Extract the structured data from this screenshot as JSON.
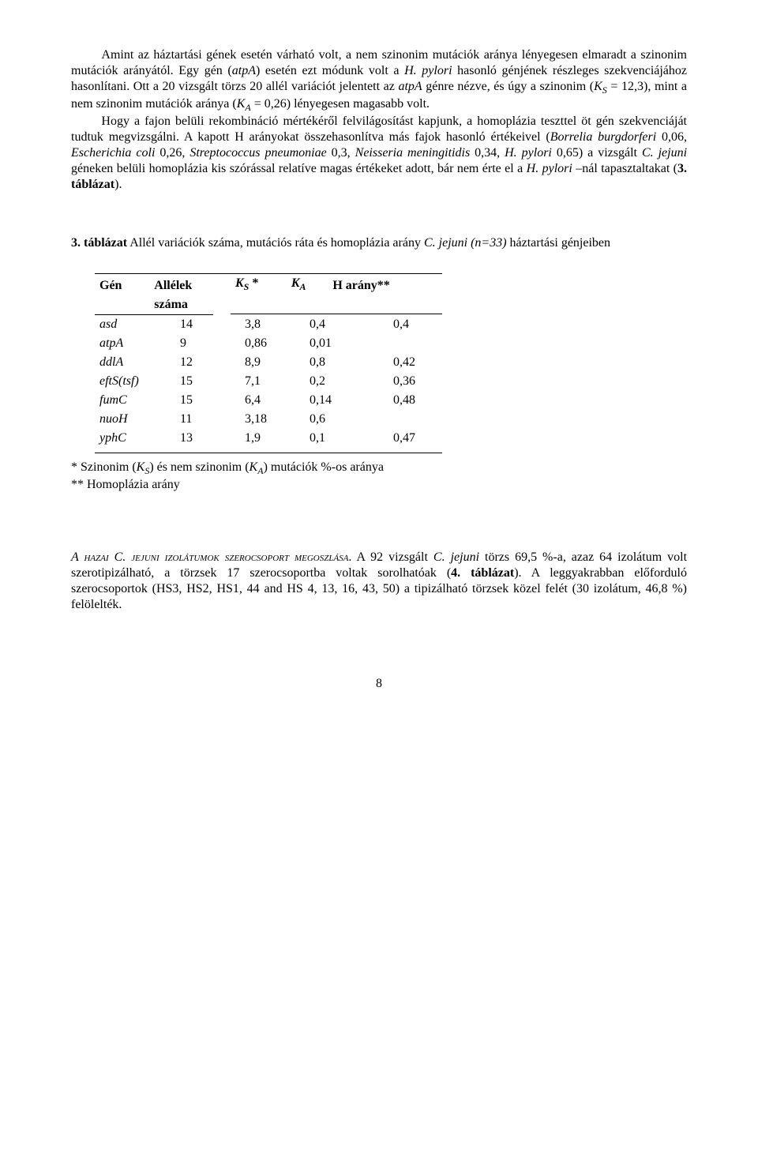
{
  "paragraphs": {
    "p1a": "Amint az háztartási gének esetén várható volt, a nem szinonim mutációk aránya lényegesen elmaradt a szinonim mutációk arányától. Egy gén (",
    "p1b_it": "atpA",
    "p1c": ") esetén ezt módunk volt a ",
    "p1d_it": "H. pylori",
    "p1e": " hasonló génjének részleges szekvenciájához hasonlítani. Ott a 20 vizsgált törzs 20 allél variációt jelentett az ",
    "p1f_it": "atpA",
    "p1g": " génre nézve, és úgy a szinonim (",
    "p1h_it": "K",
    "p1h_sub": "S",
    "p1i": " = 12,3), mint a nem szinonim mutációk aránya (",
    "p1j_it": "K",
    "p1j_sub": "A",
    "p1k": " = 0,26) lényegesen magasabb volt.",
    "p2a": "Hogy a fajon belüli rekombináció mértékéről felvilágosítást kapjunk, a homoplázia teszttel öt gén szekvenciáját tudtuk megvizsgálni. A kapott H arányokat összehasonlítva más fajok hasonló értékeivel (",
    "p2b_it": "Borrelia burgdorferi",
    "p2c": " 0,06, ",
    "p2d_it": "Escherichia coli",
    "p2e": " 0,26, ",
    "p2f_it": "Streptococcus pneumoniae",
    "p2g": " 0,3, ",
    "p2h_it": "Neisseria meningitidis",
    "p2i": " 0,34, ",
    "p2j_it": "H. pylori",
    "p2k": " 0,65) a vizsgált ",
    "p2l_it": "C. jejuni",
    "p2m": " géneken belüli homoplázia kis szórással relatíve magas értékeket adott, bár nem érte el a ",
    "p2n_it": "H. pylori",
    "p2o": " –nál tapasztaltakat (",
    "p2p_b": "3. táblázat",
    "p2q": ")."
  },
  "caption": {
    "lead_b": "3. táblázat",
    "rest1": " Allél variációk száma, mutációs ráta és homoplázia arány   ",
    "it": "C. jejuni (n=33)",
    "rest2": " háztartási génjeiben"
  },
  "table": {
    "columns": {
      "c1": "Gén",
      "c2a": "Allélek",
      "c2b": "száma",
      "c3_it": "K",
      "c3_sub": "S",
      "c3_star": " *",
      "c4_it": "K",
      "c4_sub": "A",
      "c5": "H arány**"
    },
    "rows": [
      {
        "gene": "asd",
        "alleles": "14",
        "ks": "3,8",
        "ka": "0,4",
        "h": "0,4"
      },
      {
        "gene": "atpA",
        "alleles": "9",
        "ks": "0,86",
        "ka": "0,01",
        "h": ""
      },
      {
        "gene": "ddlA",
        "alleles": "12",
        "ks": "8,9",
        "ka": "0,8",
        "h": "0,42"
      },
      {
        "gene": "eftS(tsf)",
        "alleles": "15",
        "ks": "7,1",
        "ka": "0,2",
        "h": "0,36"
      },
      {
        "gene": "fumC",
        "alleles": "15",
        "ks": "6,4",
        "ka": "0,14",
        "h": "0,48"
      },
      {
        "gene": "nuoH",
        "alleles": "11",
        "ks": "3,18",
        "ka": "0,6",
        "h": ""
      },
      {
        "gene": "yphC",
        "alleles": "13",
        "ks": "1,9",
        "ka": "0,1",
        "h": "0,47"
      }
    ]
  },
  "footnotes": {
    "f1a": "* Szinonim (",
    "f1b_it": "K",
    "f1b_sub": "S",
    "f1c": ") és nem szinonim (",
    "f1d_it": "K",
    "f1d_sub": "A",
    "f1e": ") mutációk %-os aránya",
    "f2": "** Homoplázia arány"
  },
  "bottom": {
    "sc": "A hazai C. jejuni izolátumok szerocsoport megoszlása",
    "dot": ". ",
    "a": "A 92 vizsgált ",
    "it1": "C. jejuni",
    "b": " törzs 69,5 %-a, azaz 64 izolátum volt szerotipizálható, a törzsek 17 szerocsoportba voltak sorolhatóak (",
    "bold": "4. táblázat",
    "c": "). A leggyakrabban előforduló szerocsoportok (HS3, HS2, HS1, 44 and HS 4, 13, 16, 43, 50) a tipizálható törzsek közel felét (30 izolátum, 46,8 %) felölelték."
  },
  "page": "8"
}
